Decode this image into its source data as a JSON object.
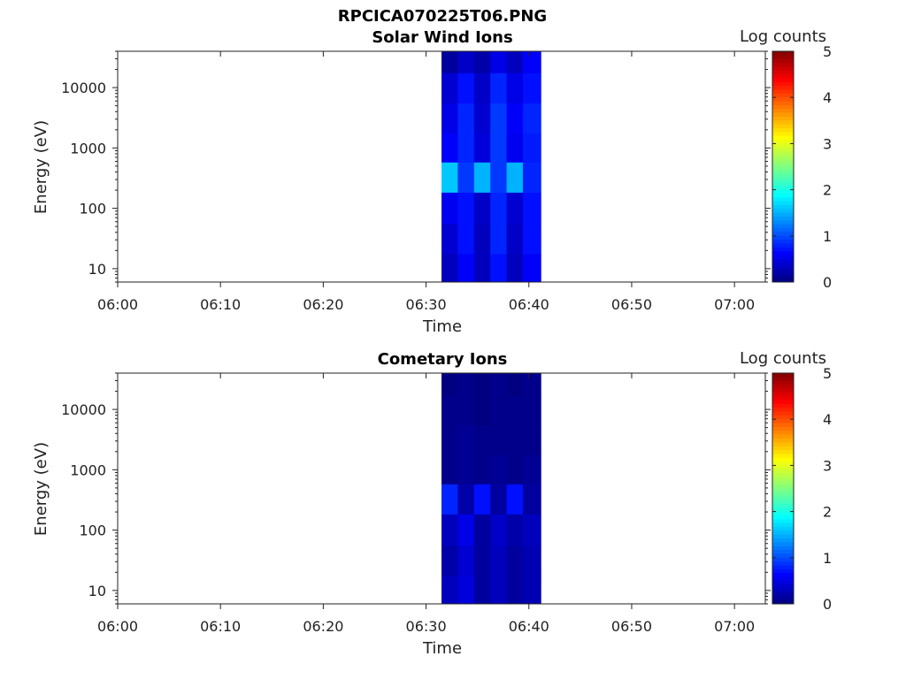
{
  "figure_title": "RPCICA070225T06.PNG",
  "chart_data": [
    {
      "type": "heatmap",
      "title": "Solar Wind Ions",
      "xlabel": "Time",
      "ylabel": "Energy (eV)",
      "x_ticks": [
        "06:00",
        "06:10",
        "06:20",
        "06:30",
        "06:40",
        "06:50",
        "07:00"
      ],
      "xlim": [
        "06:00",
        "07:03"
      ],
      "y_scale": "log",
      "y_ticks": [
        "10",
        "100",
        "1000",
        "10000"
      ],
      "ylim": [
        6,
        40000
      ],
      "colorbar": {
        "label": "Log counts",
        "range": [
          0,
          5
        ],
        "ticks": [
          "0",
          "1",
          "2",
          "3",
          "4",
          "5"
        ],
        "colormap": "jet"
      },
      "data_time_range": [
        "06:31:30",
        "06:41:10"
      ],
      "time_columns": [
        "06:31:30",
        "06:33:05",
        "06:34:40",
        "06:36:15",
        "06:37:50",
        "06:39:25"
      ],
      "energy_bands_eV": [
        30000,
        10000,
        3000,
        1000,
        330,
        100,
        30,
        10
      ],
      "values_log_counts": [
        [
          0.15,
          0.35,
          0.2,
          0.5,
          0.3,
          0.6
        ],
        [
          0.4,
          0.7,
          0.35,
          0.8,
          0.5,
          0.7
        ],
        [
          0.5,
          0.8,
          0.4,
          0.9,
          0.6,
          0.8
        ],
        [
          0.6,
          0.8,
          0.45,
          0.9,
          0.55,
          0.75
        ],
        [
          1.6,
          0.9,
          1.5,
          0.9,
          1.5,
          0.8
        ],
        [
          0.55,
          0.7,
          0.35,
          0.8,
          0.4,
          0.7
        ],
        [
          0.4,
          0.7,
          0.3,
          0.8,
          0.35,
          0.7
        ],
        [
          0.3,
          0.6,
          0.3,
          0.7,
          0.3,
          0.6
        ]
      ]
    },
    {
      "type": "heatmap",
      "title": "Cometary Ions",
      "xlabel": "Time",
      "ylabel": "Energy (eV)",
      "x_ticks": [
        "06:00",
        "06:10",
        "06:20",
        "06:30",
        "06:40",
        "06:50",
        "07:00"
      ],
      "xlim": [
        "06:00",
        "07:03"
      ],
      "y_scale": "log",
      "y_ticks": [
        "10",
        "100",
        "1000",
        "10000"
      ],
      "ylim": [
        6,
        40000
      ],
      "colorbar": {
        "label": "Log counts",
        "range": [
          0,
          5
        ],
        "ticks": [
          "0",
          "1",
          "2",
          "3",
          "4",
          "5"
        ],
        "colormap": "jet"
      },
      "data_time_range": [
        "06:31:30",
        "06:41:10"
      ],
      "time_columns": [
        "06:31:30",
        "06:33:05",
        "06:34:40",
        "06:36:15",
        "06:37:50",
        "06:39:25"
      ],
      "energy_bands_eV": [
        30000,
        10000,
        3000,
        1000,
        330,
        100,
        30,
        10
      ],
      "values_log_counts": [
        [
          0.0,
          0.05,
          0.0,
          0.05,
          0.0,
          0.05
        ],
        [
          0.05,
          0.05,
          0.0,
          0.05,
          0.05,
          0.05
        ],
        [
          0.05,
          0.1,
          0.05,
          0.05,
          0.05,
          0.05
        ],
        [
          0.05,
          0.1,
          0.05,
          0.1,
          0.05,
          0.1
        ],
        [
          0.8,
          0.2,
          0.7,
          0.15,
          0.7,
          0.15
        ],
        [
          0.3,
          0.5,
          0.15,
          0.35,
          0.2,
          0.3
        ],
        [
          0.2,
          0.4,
          0.15,
          0.3,
          0.15,
          0.25
        ],
        [
          0.3,
          0.45,
          0.15,
          0.3,
          0.15,
          0.25
        ]
      ]
    }
  ]
}
